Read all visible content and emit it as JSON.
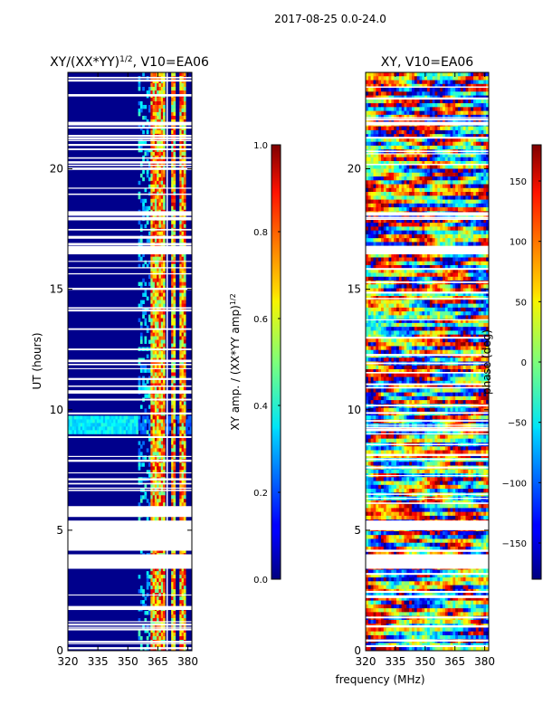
{
  "suptitle": "2017-08-25 0.0-24.0",
  "xlabel_shared": "frequency (MHz)",
  "chart_data": [
    {
      "type": "heatmap",
      "title_main": "XY/(XX*YY)",
      "title_sup": "1/2",
      "title_rest": ", V10=EA06",
      "xlabel": "",
      "ylabel": "UT (hours)",
      "xlim": [
        320,
        382
      ],
      "ylim": [
        0,
        24
      ],
      "xticks": [
        320,
        335,
        350,
        365,
        380
      ],
      "yticks": [
        0,
        5,
        10,
        15,
        20
      ],
      "colormap": "jet",
      "gap_bands_hours": [
        [
          3.4,
          4.0
        ],
        [
          4.15,
          5.4
        ],
        [
          5.55,
          6.0
        ],
        [
          16.45,
          16.8
        ],
        [
          18.05,
          18.2
        ],
        [
          21.8,
          21.95
        ],
        [
          23.0,
          23.1
        ]
      ],
      "bright_channels_mhz": [
        [
          361,
          364
        ],
        [
          364.5,
          366.5
        ],
        [
          367,
          369
        ],
        [
          372,
          374
        ],
        [
          376,
          379
        ]
      ],
      "colorbar": {
        "label_main": "XY amp. / (XX*YY amp)",
        "label_sup": "1/2",
        "range": [
          0.0,
          1.0
        ],
        "ticks": [
          "0.0",
          "0.2",
          "0.4",
          "0.6",
          "0.8",
          "1.0"
        ],
        "tick_values": [
          0.0,
          0.2,
          0.4,
          0.6,
          0.8,
          1.0
        ]
      }
    },
    {
      "type": "heatmap",
      "title_main": "XY, V10=EA06",
      "xlabel": "frequency (MHz)",
      "ylabel": "",
      "xlim": [
        320,
        382
      ],
      "ylim": [
        0,
        24
      ],
      "xticks": [
        320,
        335,
        350,
        365,
        380
      ],
      "yticks": [
        0,
        5,
        10,
        15,
        20
      ],
      "colormap": "jet",
      "gap_bands_hours": [
        [
          3.4,
          4.0
        ],
        [
          5.0,
          5.4
        ],
        [
          16.45,
          16.8
        ],
        [
          18.05,
          18.2
        ],
        [
          21.8,
          21.95
        ]
      ],
      "colorbar": {
        "label_main": "phase (deg)",
        "range": [
          -180,
          180
        ],
        "ticks": [
          "−150",
          "−100",
          "−50",
          "0",
          "50",
          "100",
          "150"
        ],
        "tick_values": [
          -150,
          -100,
          -50,
          0,
          50,
          100,
          150
        ]
      }
    }
  ]
}
